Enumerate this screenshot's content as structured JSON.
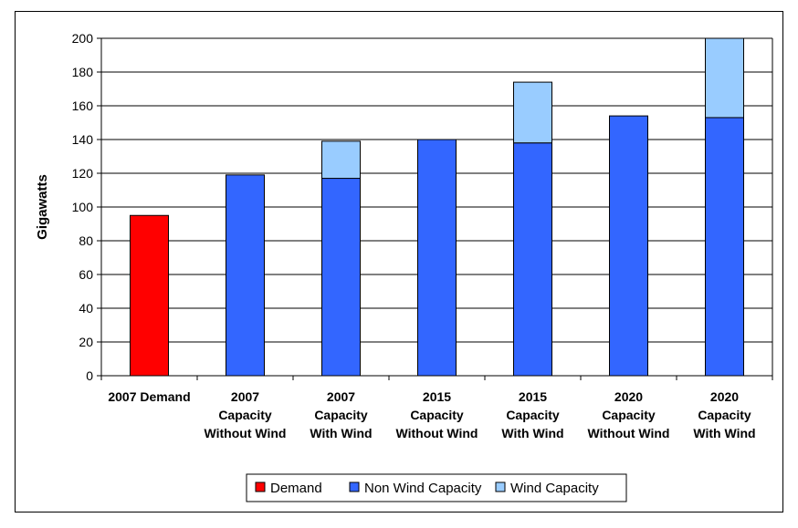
{
  "chart_data": {
    "type": "bar",
    "stacked": true,
    "title": "",
    "xlabel": "",
    "ylabel": "Gigawatts",
    "ylim": [
      0,
      200
    ],
    "yticks": [
      0,
      20,
      40,
      60,
      80,
      100,
      120,
      140,
      160,
      180,
      200
    ],
    "grid": true,
    "legend_position": "bottom",
    "categories": [
      [
        "2007 Demand"
      ],
      [
        "2007",
        "Capacity",
        "Without Wind"
      ],
      [
        "2007",
        "Capacity",
        "With Wind"
      ],
      [
        "2015",
        "Capacity",
        "Without Wind"
      ],
      [
        "2015",
        "Capacity",
        "With Wind"
      ],
      [
        "2020",
        "Capacity",
        "Without Wind"
      ],
      [
        "2020",
        "Capacity",
        "With Wind"
      ]
    ],
    "series": [
      {
        "name": "Demand",
        "color": "#ff0000",
        "values": [
          95,
          0,
          0,
          0,
          0,
          0,
          0
        ]
      },
      {
        "name": "Non Wind Capacity",
        "color": "#3366ff",
        "values": [
          0,
          119,
          117,
          140,
          138,
          154,
          153
        ]
      },
      {
        "name": "Wind Capacity",
        "color": "#99ccff",
        "values": [
          0,
          0,
          22,
          0,
          36,
          0,
          47
        ]
      }
    ]
  }
}
